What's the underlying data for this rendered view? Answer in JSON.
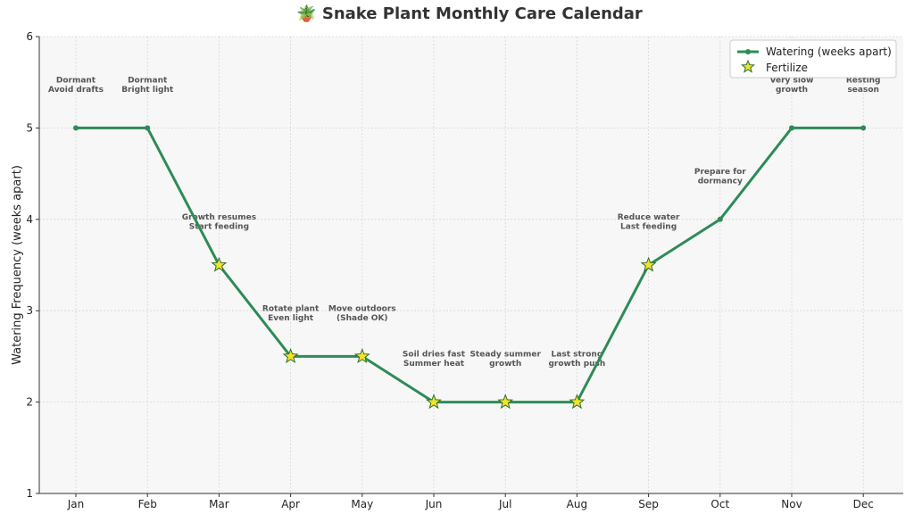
{
  "chart_data": {
    "type": "line",
    "title": "🪴 Snake Plant Monthly Care Calendar",
    "xlabel": "",
    "ylabel": "Watering Frequency (weeks apart)",
    "categories": [
      "Jan",
      "Feb",
      "Mar",
      "Apr",
      "May",
      "Jun",
      "Jul",
      "Aug",
      "Sep",
      "Oct",
      "Nov",
      "Dec"
    ],
    "ylim": [
      1,
      6
    ],
    "yticks": [
      1,
      2,
      3,
      4,
      5,
      6
    ],
    "grid": true,
    "legend_position": "top-right",
    "series": [
      {
        "name": "Watering (weeks apart)",
        "values": [
          5,
          5,
          3.5,
          2.5,
          2.5,
          2,
          2,
          2,
          3.5,
          4,
          5,
          5
        ],
        "color": "#2e8b57"
      }
    ],
    "fertilize": {
      "name": "Fertilize",
      "months": [
        "Mar",
        "Apr",
        "May",
        "Jun",
        "Jul",
        "Aug",
        "Sep"
      ],
      "values": [
        3.5,
        2.5,
        2.5,
        2,
        2,
        2,
        3.5
      ],
      "color": "#f2e22b",
      "edge_color": "#2f6f2f"
    },
    "annotations": [
      {
        "month": "Jan",
        "lines": [
          "Dormant",
          "Avoid drafts"
        ]
      },
      {
        "month": "Feb",
        "lines": [
          "Dormant",
          "Bright light"
        ]
      },
      {
        "month": "Mar",
        "lines": [
          "Growth resumes",
          "Start feeding"
        ]
      },
      {
        "month": "Apr",
        "lines": [
          "Rotate plant",
          "Even light"
        ]
      },
      {
        "month": "May",
        "lines": [
          "Move outdoors",
          "(Shade OK)"
        ]
      },
      {
        "month": "Jun",
        "lines": [
          "Soil dries fast",
          "Summer heat"
        ]
      },
      {
        "month": "Jul",
        "lines": [
          "Steady summer",
          "growth"
        ]
      },
      {
        "month": "Aug",
        "lines": [
          "Last strong",
          "growth push"
        ]
      },
      {
        "month": "Sep",
        "lines": [
          "Reduce water",
          "Last feeding"
        ]
      },
      {
        "month": "Oct",
        "lines": [
          "Prepare for",
          "dormancy"
        ]
      },
      {
        "month": "Nov",
        "lines": [
          "Very slow",
          "growth"
        ]
      },
      {
        "month": "Dec",
        "lines": [
          "Resting",
          "season"
        ]
      }
    ]
  }
}
